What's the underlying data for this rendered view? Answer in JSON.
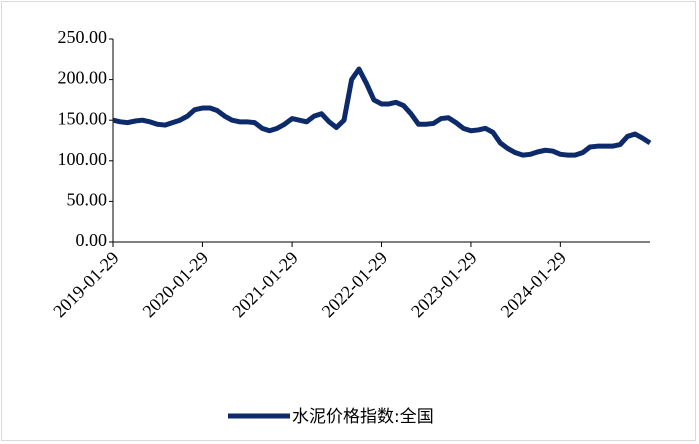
{
  "chart_data": {
    "type": "line",
    "x": [
      "2019-01-29",
      "2019-02-28",
      "2019-03-29",
      "2019-04-29",
      "2019-05-29",
      "2019-06-29",
      "2019-07-29",
      "2019-08-29",
      "2019-09-29",
      "2019-10-29",
      "2019-11-29",
      "2019-12-29",
      "2020-01-29",
      "2020-02-29",
      "2020-03-29",
      "2020-04-29",
      "2020-05-29",
      "2020-06-29",
      "2020-07-29",
      "2020-08-29",
      "2020-09-29",
      "2020-10-29",
      "2020-11-29",
      "2020-12-29",
      "2021-01-29",
      "2021-02-28",
      "2021-03-29",
      "2021-04-29",
      "2021-05-29",
      "2021-06-29",
      "2021-07-29",
      "2021-08-29",
      "2021-09-29",
      "2021-10-29",
      "2021-11-29",
      "2021-12-29",
      "2022-01-29",
      "2022-02-28",
      "2022-03-29",
      "2022-04-29",
      "2022-05-29",
      "2022-06-29",
      "2022-07-29",
      "2022-08-29",
      "2022-09-29",
      "2022-10-29",
      "2022-11-29",
      "2022-12-29",
      "2023-01-29",
      "2023-02-28",
      "2023-03-29",
      "2023-04-29",
      "2023-05-29",
      "2023-06-29",
      "2023-07-29",
      "2023-08-29",
      "2023-09-29",
      "2023-10-29",
      "2023-11-29",
      "2023-12-29",
      "2024-01-29",
      "2024-02-29",
      "2024-03-29",
      "2024-04-29",
      "2024-05-29",
      "2024-06-29",
      "2024-07-29",
      "2024-08-29",
      "2024-09-29",
      "2024-10-29",
      "2024-11-29",
      "2024-12-29",
      "2025-01-29"
    ],
    "series": [
      {
        "name": "水泥价格指数:全国",
        "color": "#0d2b6b",
        "values": [
          150,
          148,
          147,
          149,
          150,
          148,
          145,
          144,
          147,
          150,
          155,
          163,
          165,
          165,
          162,
          155,
          150,
          148,
          148,
          147,
          140,
          137,
          140,
          145,
          152,
          150,
          148,
          155,
          158,
          148,
          141,
          150,
          200,
          213,
          195,
          175,
          170,
          170,
          172,
          168,
          158,
          145,
          145,
          146,
          152,
          153,
          147,
          140,
          137,
          138,
          140,
          135,
          122,
          115,
          110,
          107,
          108,
          111,
          113,
          112,
          108,
          107,
          107,
          110,
          117,
          118,
          118,
          118,
          120,
          130,
          133,
          128,
          122
        ]
      }
    ],
    "xlim": [
      "2019-01-29",
      "2025-01-29"
    ],
    "xticks": [
      "2019-01-29",
      "2020-01-29",
      "2021-01-29",
      "2022-01-29",
      "2023-01-29",
      "2024-01-29"
    ],
    "ylim": [
      0,
      250
    ],
    "yticks": [
      {
        "value": 0,
        "label": "0.00"
      },
      {
        "value": 50,
        "label": "50.00"
      },
      {
        "value": 100,
        "label": "100.00"
      },
      {
        "value": 150,
        "label": "150.00"
      },
      {
        "value": 200,
        "label": "200.00"
      },
      {
        "value": 250,
        "label": "250.00"
      }
    ],
    "grid": false,
    "legend": "bottom"
  }
}
